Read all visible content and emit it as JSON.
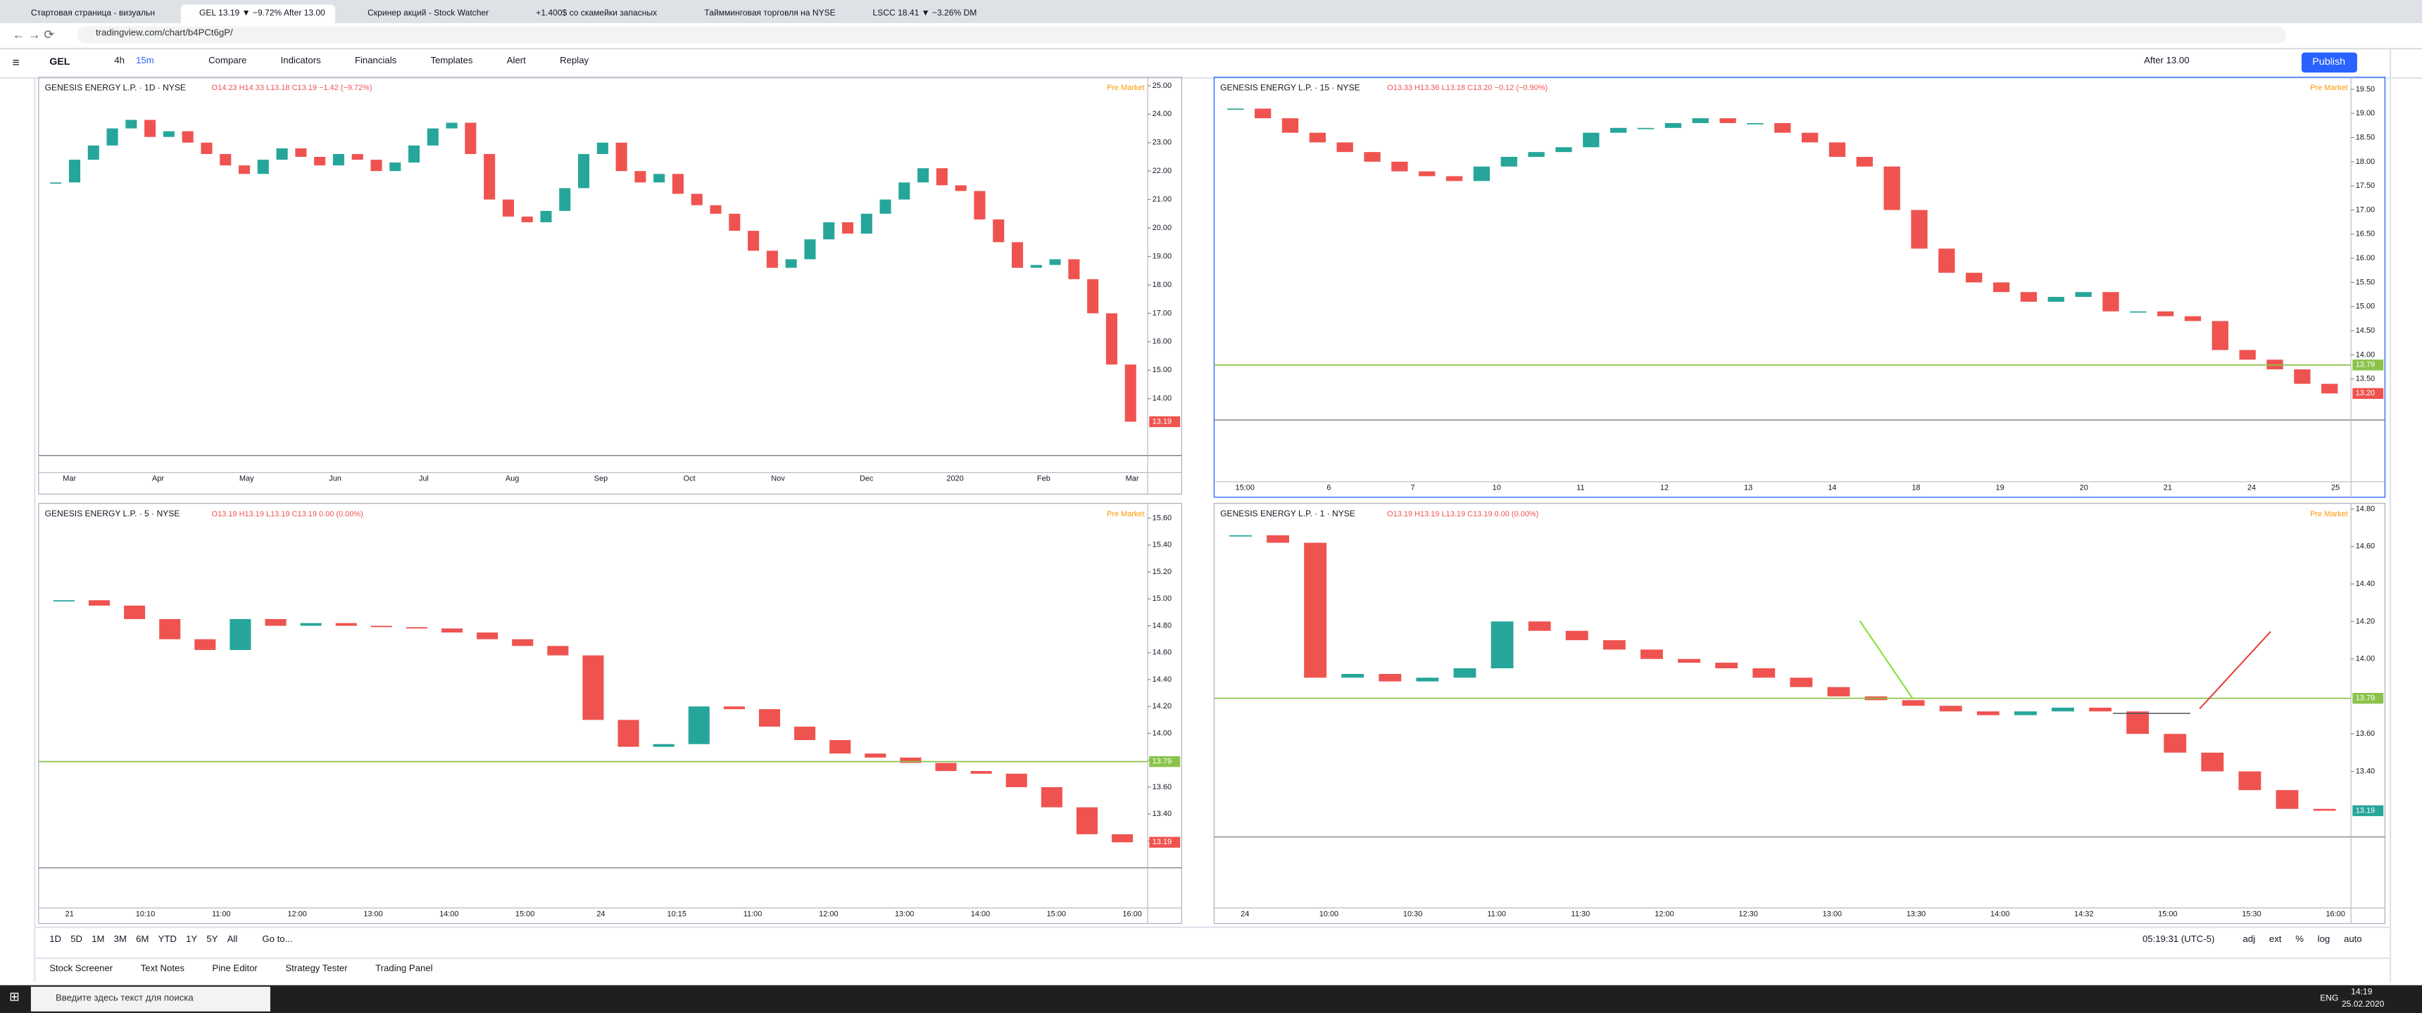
{
  "browser": {
    "tabs": [
      "Стартовая страница - визуальн",
      "GEL 13.19 ▼ −9.72% After 13.00",
      "Скринер акций - Stock Watcher",
      "+1.400$ со скамейки запасных",
      "Таймминговая торговля на NYSE",
      "LSCC 18.41 ▼ −3.26% DM"
    ],
    "url": "tradingview.com/chart/b4PCt6gP/"
  },
  "toolbar": {
    "symbol": "GEL",
    "interval": "4h",
    "interval2": "15m",
    "items": [
      "Compare",
      "Indicators",
      "Financials",
      "Templates",
      "Alert",
      "Replay"
    ],
    "session": "After 13.00",
    "publish": "Publish"
  },
  "chart_data": [
    {
      "type": "candlestick",
      "title": "GENESIS ENERGY L.P. · 1D · NYSE",
      "ohlc": "O14.23 H14.33 L13.18 C13.19 −1.42 (−9.72%)",
      "pre": "Pre Market",
      "ylim": [
        12.0,
        25.3
      ],
      "yticks": [
        {
          "value": 14,
          "label": "14.00"
        },
        {
          "value": 15,
          "label": "15.00"
        },
        {
          "value": 16,
          "label": "16.00"
        },
        {
          "value": 17,
          "label": "17.00"
        },
        {
          "value": 18,
          "label": "18.00"
        },
        {
          "value": 19,
          "label": "19.00"
        },
        {
          "value": 20,
          "label": "20.00"
        },
        {
          "value": 21,
          "label": "21.00"
        },
        {
          "value": 22,
          "label": "22.00"
        },
        {
          "value": 23,
          "label": "23.00"
        },
        {
          "value": 24,
          "label": "24.00"
        },
        {
          "value": 25,
          "label": "25.00"
        }
      ],
      "x_labels": [
        "Mar",
        "Apr",
        "May",
        "Jun",
        "Jul",
        "Aug",
        "Sep",
        "Oct",
        "Nov",
        "Dec",
        "2020",
        "Feb",
        "Mar"
      ],
      "values": [
        21.6,
        22.4,
        22.9,
        23.5,
        23.8,
        23.2,
        23.4,
        23.0,
        22.6,
        22.2,
        21.9,
        22.4,
        22.8,
        22.5,
        22.2,
        22.6,
        22.4,
        22.0,
        22.3,
        22.9,
        23.5,
        23.7,
        22.6,
        21.0,
        20.4,
        20.2,
        20.6,
        21.4,
        22.6,
        23.0,
        22.0,
        21.6,
        21.9,
        21.2,
        20.8,
        20.5,
        19.9,
        19.2,
        18.6,
        18.9,
        19.6,
        20.2,
        19.8,
        20.5,
        21.0,
        21.6,
        22.1,
        21.5,
        21.3,
        20.3,
        19.5,
        18.6,
        18.7,
        18.9,
        18.2,
        17.0,
        15.2,
        13.19
      ],
      "last": 13.19
    },
    {
      "type": "candlestick",
      "title": "GENESIS ENERGY L.P. · 15 · NYSE",
      "ohlc": "O13.33 H13.36 L13.18 C13.20 −0.12 (−0.90%)",
      "pre": "Pre Market",
      "ylim": [
        12.65,
        19.75
      ],
      "yticks": [
        {
          "value": 13.5,
          "label": "13.50"
        },
        {
          "value": 14,
          "label": "14.00"
        },
        {
          "value": 14.5,
          "label": "14.50"
        },
        {
          "value": 15,
          "label": "15.00"
        },
        {
          "value": 15.5,
          "label": "15.50"
        },
        {
          "value": 16,
          "label": "16.00"
        },
        {
          "value": 16.5,
          "label": "16.50"
        },
        {
          "value": 17,
          "label": "17.00"
        },
        {
          "value": 17.5,
          "label": "17.50"
        },
        {
          "value": 18,
          "label": "18.00"
        },
        {
          "value": 18.5,
          "label": "18.50"
        },
        {
          "value": 19,
          "label": "19.00"
        },
        {
          "value": 19.5,
          "label": "19.50"
        }
      ],
      "x_labels": [
        "15:00",
        "6",
        "7",
        "10",
        "11",
        "12",
        "13",
        "14",
        "18",
        "19",
        "20",
        "21",
        "24",
        "25"
      ],
      "values": [
        19.1,
        18.9,
        18.6,
        18.4,
        18.2,
        18.0,
        17.8,
        17.7,
        17.6,
        17.9,
        18.1,
        18.2,
        18.3,
        18.6,
        18.7,
        18.7,
        18.8,
        18.9,
        18.8,
        18.8,
        18.6,
        18.4,
        18.1,
        17.9,
        17.0,
        16.2,
        15.7,
        15.5,
        15.3,
        15.1,
        15.2,
        15.3,
        14.9,
        14.9,
        14.8,
        14.7,
        14.1,
        13.9,
        13.7,
        13.4,
        13.2
      ],
      "last": {
        "value": 13.2,
        "label": "13.20"
      },
      "level": 13.79
    },
    {
      "type": "candlestick",
      "title": "GENESIS ENERGY L.P. · 5 · NYSE",
      "ohlc": "O13.19 H13.19 L13.19 C13.19 0.00 (0.00%)",
      "pre": "Pre Market",
      "ylim": [
        13.0,
        15.71
      ],
      "yticks": [
        {
          "value": 13.2,
          "label": "13.20"
        },
        {
          "value": 13.4,
          "label": "13.40"
        },
        {
          "value": 13.6,
          "label": "13.60"
        },
        {
          "value": 13.8,
          "label": "13.80"
        },
        {
          "value": 14.0,
          "label": "14.00"
        },
        {
          "value": 14.2,
          "label": "14.20"
        },
        {
          "value": 14.4,
          "label": "14.40"
        },
        {
          "value": 14.6,
          "label": "14.60"
        },
        {
          "value": 14.8,
          "label": "14.80"
        },
        {
          "value": 15.0,
          "label": "15.00"
        },
        {
          "value": 15.2,
          "label": "15.20"
        },
        {
          "value": 15.4,
          "label": "15.40"
        },
        {
          "value": 15.6,
          "label": "15.60"
        }
      ],
      "x_labels": [
        "21",
        "10:10",
        "11:00",
        "12:00",
        "13:00",
        "14:00",
        "15:00",
        "24",
        "10:15",
        "11:00",
        "12:00",
        "13:00",
        "14:00",
        "15:00",
        "16:00"
      ],
      "values": [
        14.99,
        14.95,
        14.85,
        14.7,
        14.62,
        14.85,
        14.8,
        14.82,
        14.8,
        14.79,
        14.78,
        14.75,
        14.7,
        14.65,
        14.58,
        14.1,
        13.9,
        13.92,
        14.2,
        14.18,
        14.05,
        13.95,
        13.85,
        13.82,
        13.78,
        13.72,
        13.7,
        13.6,
        13.45,
        13.25,
        13.19
      ],
      "last": 13.19,
      "level": 13.79
    },
    {
      "type": "candlestick",
      "title": "GENESIS ENERGY L.P. · 1 · NYSE",
      "ohlc": "O13.19 H13.19 L13.19 C13.19 0.00 (0.00%)",
      "pre": "Pre Market",
      "ylim": [
        13.05,
        14.83
      ],
      "yticks": [
        {
          "value": 13.4,
          "label": "13.40"
        },
        {
          "value": 13.6,
          "label": "13.60"
        },
        {
          "value": 14.0,
          "label": "14.00"
        },
        {
          "value": 14.2,
          "label": "14.20"
        },
        {
          "value": 14.4,
          "label": "14.40"
        },
        {
          "value": 14.6,
          "label": "14.60"
        },
        {
          "value": 14.8,
          "label": "14.80"
        }
      ],
      "x_labels": [
        "24",
        "10:00",
        "10:30",
        "11:00",
        "11:30",
        "12:00",
        "12:30",
        "13:00",
        "13:30",
        "14:00",
        "14:32",
        "15:00",
        "15:30",
        "16:00"
      ],
      "values": [
        14.66,
        14.62,
        13.9,
        13.92,
        13.88,
        13.9,
        13.95,
        14.2,
        14.15,
        14.1,
        14.05,
        14.0,
        13.98,
        13.95,
        13.9,
        13.85,
        13.8,
        13.78,
        13.75,
        13.72,
        13.7,
        13.72,
        13.74,
        13.72,
        13.6,
        13.5,
        13.4,
        13.3,
        13.2,
        13.19
      ],
      "last": 13.19,
      "level": 13.79
    }
  ],
  "bottom_bar": {
    "ranges": [
      "1D",
      "5D",
      "1M",
      "3M",
      "6M",
      "YTD",
      "1Y",
      "5Y",
      "All"
    ],
    "goto": "Go to...",
    "clock": "05:19:31 (UTC-5)",
    "options": [
      "adj",
      "ext",
      "%",
      "log",
      "auto"
    ]
  },
  "footer_tabs": [
    "Stock Screener",
    "Text Notes",
    "Pine Editor",
    "Strategy Tester",
    "Trading Panel"
  ],
  "taskbar": {
    "search": "Введите здесь текст для поиска",
    "lang": "ENG",
    "time": "14:19",
    "date": "25.02.2020"
  }
}
